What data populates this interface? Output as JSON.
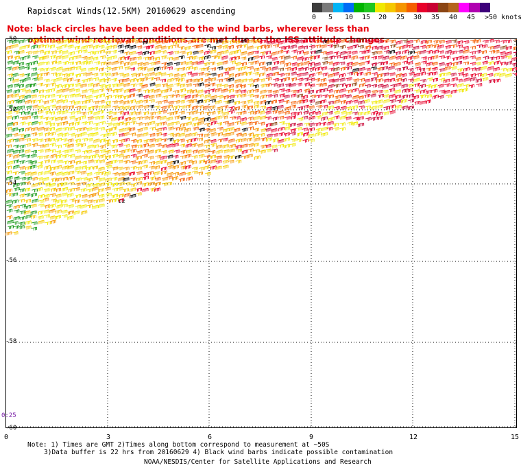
{
  "header": {
    "title": "Rapidscat Winds(12.5KM) 20160629 ascending",
    "note_line1": "Note: black circles have been added to the wind barbs, wherever less than",
    "note_line2": "optimal wind retrieval conditions are met due to the ISS attitude changes."
  },
  "legend": {
    "colors": [
      "#3d3d3d",
      "#7a7a7a",
      "#00b4f5",
      "#006cf5",
      "#00b400",
      "#1fc61f",
      "#f0e800",
      "#f5c800",
      "#f59500",
      "#f55e00",
      "#e8002a",
      "#c80032",
      "#8b4513",
      "#b5651d",
      "#ff00ff",
      "#b000b0",
      "#3d007a"
    ],
    "labels": [
      "0",
      "5",
      "10",
      "15",
      "20",
      "25",
      "30",
      "35",
      "40",
      "45",
      ">50 knots"
    ]
  },
  "map": {
    "x_ticks": [
      "0",
      "3",
      "6",
      "9",
      "12",
      "15"
    ],
    "y_ticks": [
      "-50",
      "-52",
      "-54",
      "-56",
      "-58",
      "-60"
    ],
    "time_label": "0:25",
    "symbol": "cz"
  },
  "footer": {
    "note1": "Note: 1) Times are GMT 2)Times along bottom correspond to measurement at ~50S",
    "note2": "3)Data buffer is 22 hrs from 20160629 4) Black wind barbs indicate possible contamination",
    "credit": "NOAA/NESDIS/Center for Satellite Applications and Research"
  }
}
